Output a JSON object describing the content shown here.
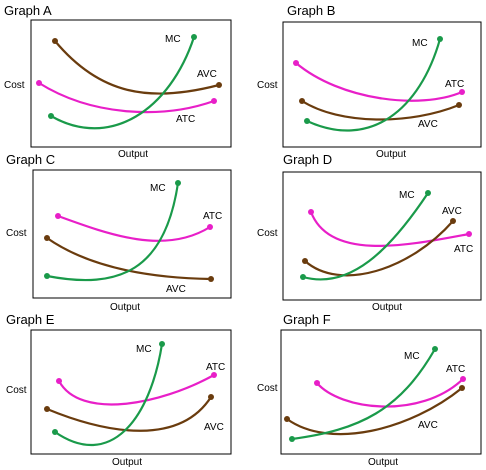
{
  "colors": {
    "mc": "#1a9a4a",
    "atc": "#e81fc8",
    "avc": "#6a3c0e",
    "frame": "#000000"
  },
  "graphs": [
    {
      "title": "Graph A",
      "ylabel": "Cost",
      "xlabel": "Output",
      "curve_labels": {
        "mc": "MC",
        "atc": "ATC",
        "avc": "AVC"
      }
    },
    {
      "title": "Graph B",
      "ylabel": "Cost",
      "xlabel": "Output",
      "curve_labels": {
        "mc": "MC",
        "atc": "ATC",
        "avc": "AVC"
      }
    },
    {
      "title": "Graph C",
      "ylabel": "Cost",
      "xlabel": "Output",
      "curve_labels": {
        "mc": "MC",
        "atc": "ATC",
        "avc": "AVC"
      }
    },
    {
      "title": "Graph D",
      "ylabel": "Cost",
      "xlabel": "Output",
      "curve_labels": {
        "mc": "MC",
        "atc": "ATC",
        "avc": "AVC"
      }
    },
    {
      "title": "Graph E",
      "ylabel": "Cost",
      "xlabel": "Output",
      "curve_labels": {
        "mc": "MC",
        "atc": "ATC",
        "avc": "AVC"
      }
    },
    {
      "title": "Graph F",
      "ylabel": "Cost",
      "xlabel": "Output",
      "curve_labels": {
        "mc": "MC",
        "atc": "ATC",
        "avc": "AVC"
      }
    }
  ]
}
